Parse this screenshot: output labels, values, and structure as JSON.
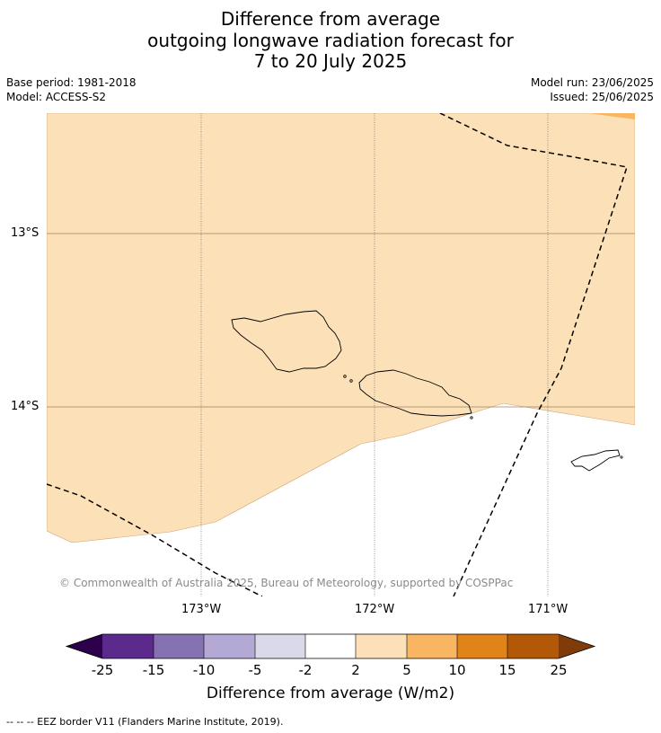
{
  "title": {
    "line1": "Difference from average",
    "line2": "outgoing longwave radiation forecast for",
    "line3": "7 to 20 July 2025"
  },
  "meta": {
    "base_period": "Base period: 1981-2018",
    "model": "Model: ACCESS-S2",
    "model_run": "Model run: 23/06/2025",
    "issued": "Issued: 25/06/2025"
  },
  "map": {
    "lat_labels": [
      "13°S",
      "14°S"
    ],
    "lon_labels": [
      "173°W",
      "172°W",
      "171°W"
    ],
    "copyright": "© Commonwealth of Australia 2025, Bureau of Meteorology, supported by COSPPac",
    "colors": {
      "anomaly_2_to_5": "#fce0b8",
      "anomaly_5_to_10": "#f9b562",
      "near_average": "#ffffff",
      "coastline": "#000000",
      "eez_border": "#000000",
      "gridline": "#a08060"
    }
  },
  "colorbar": {
    "tick_labels": [
      "-25",
      "-15",
      "-10",
      "-5",
      "-2",
      "2",
      "5",
      "10",
      "15",
      "25"
    ],
    "segments": [
      {
        "range": "-25 to -15",
        "color": "#5b2a8c"
      },
      {
        "range": "-15 to -10",
        "color": "#8473b0"
      },
      {
        "range": "-10 to -5",
        "color": "#b3a9d4"
      },
      {
        "range": "-5 to -2",
        "color": "#d9d9ea"
      },
      {
        "range": "-2 to 2",
        "color": "#ffffff"
      },
      {
        "range": "2 to 5",
        "color": "#fde0b8"
      },
      {
        "range": "5 to 10",
        "color": "#f9b562"
      },
      {
        "range": "10 to 15",
        "color": "#e2831a"
      },
      {
        "range": "15 to 25",
        "color": "#b35806"
      }
    ],
    "low_extend_color": "#2d004b",
    "high_extend_color": "#7f3b08",
    "label": "Difference from average (W/m2)"
  },
  "legend_note": "--  --  -- EEZ border V11 (Flanders Marine Institute, 2019)."
}
